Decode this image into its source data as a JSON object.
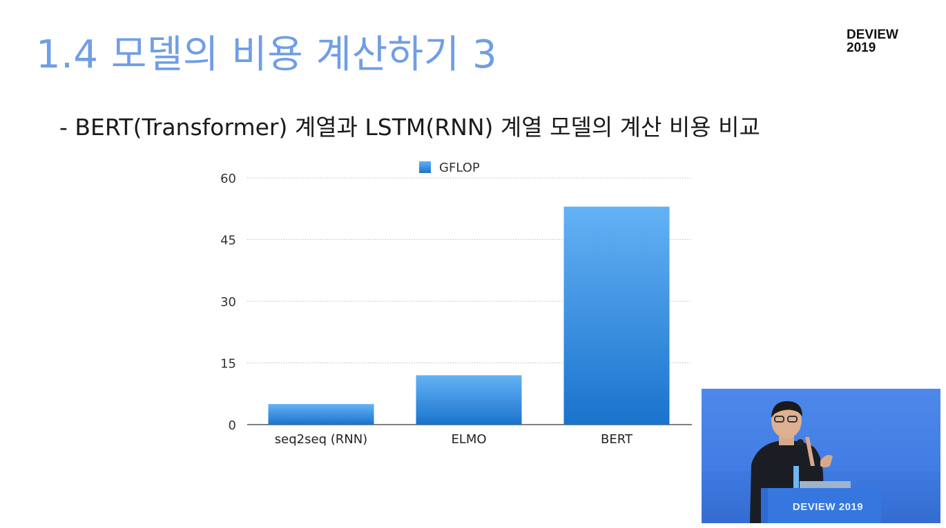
{
  "slide": {
    "title": "1.4 모델의 비용 계산하기 3",
    "brand_line1": "DEVIEW",
    "brand_line2": "2019",
    "subtitle": "- BERT(Transformer) 계열과 LSTM(RNN) 계열 모델의 계산 비용 비교"
  },
  "chart_data": {
    "type": "bar",
    "categories": [
      "seq2seq (RNN)",
      "ELMO",
      "BERT"
    ],
    "series": [
      {
        "name": "GFLOP",
        "values": [
          5,
          12,
          53
        ]
      }
    ],
    "ylim": [
      0,
      60
    ],
    "yticks": [
      0,
      15,
      30,
      45,
      60
    ],
    "title": "",
    "xlabel": "",
    "ylabel": "",
    "legend": "top",
    "grid": true,
    "colors": {
      "bar_top": "#64b2f5",
      "bar_bottom": "#1a73cc",
      "grid": "#bbbbbb",
      "axis": "#333333"
    }
  },
  "video_overlay": {
    "podium_label": "DEVIEW 2019"
  }
}
